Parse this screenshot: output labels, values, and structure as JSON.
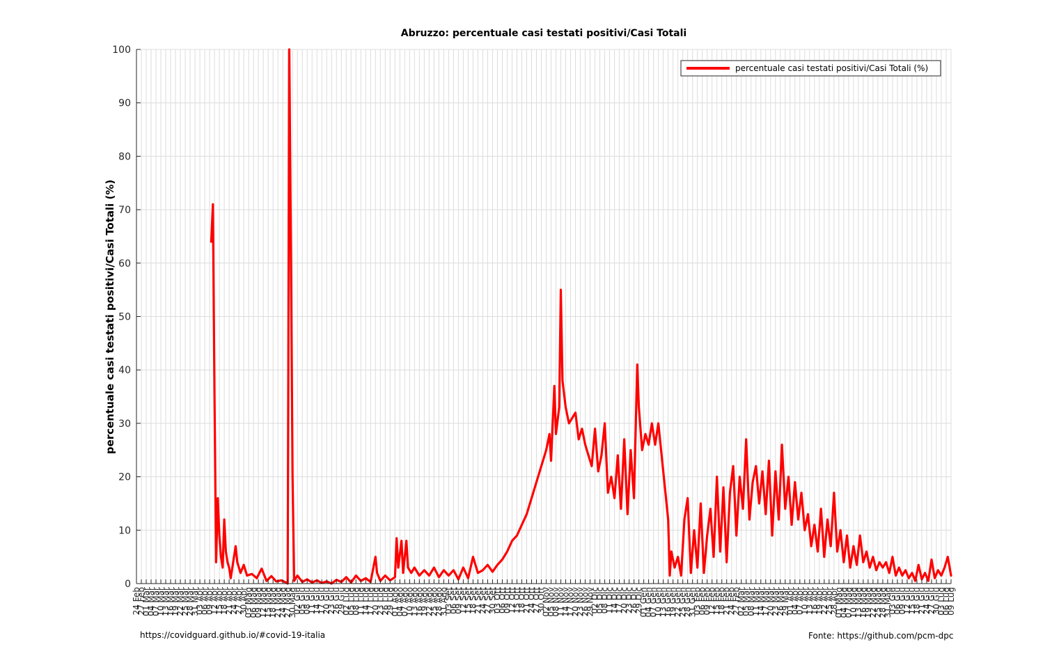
{
  "footer": {
    "left": "https://covidguard.github.io/#covid-19-italia",
    "right": "Fonte: https://github.com/pcm-dpc"
  },
  "colors": {
    "line": "#ff0000",
    "grid": "#dcdcdc",
    "axis": "#262626"
  },
  "chart_data": {
    "type": "line",
    "title": "Abruzzo: percentuale casi testati positivi/Casi Totali",
    "ylabel": "percentuale casi testati positivi/Casi Totali (%)",
    "xlabel": "",
    "ylim": [
      0,
      100
    ],
    "yticks": [
      0,
      10,
      20,
      30,
      40,
      50,
      60,
      70,
      80,
      90,
      100
    ],
    "grid": true,
    "legend_position": "top-right",
    "x_start": "2020-02-24",
    "x_end": "2021-07-09",
    "x_tick_interval_days": 3,
    "series": [
      {
        "name": "percentuale casi testati positivi/Casi Totali (%)",
        "color": "#ff0000",
        "points": [
          [
            "2020-02-24",
            null
          ],
          [
            "2020-04-09",
            null
          ],
          [
            "2020-04-10",
            64
          ],
          [
            "2020-04-11",
            71
          ],
          [
            "2020-04-12",
            35
          ],
          [
            "2020-04-13",
            4
          ],
          [
            "2020-04-14",
            16
          ],
          [
            "2020-04-15",
            9
          ],
          [
            "2020-04-16",
            5
          ],
          [
            "2020-04-17",
            3
          ],
          [
            "2020-04-18",
            12
          ],
          [
            "2020-04-19",
            6
          ],
          [
            "2020-04-20",
            4
          ],
          [
            "2020-04-21",
            3
          ],
          [
            "2020-04-22",
            1
          ],
          [
            "2020-04-24",
            5
          ],
          [
            "2020-04-25",
            7
          ],
          [
            "2020-04-26",
            4
          ],
          [
            "2020-04-28",
            2
          ],
          [
            "2020-04-30",
            3.5
          ],
          [
            "2020-05-02",
            1.5
          ],
          [
            "2020-05-05",
            1.8
          ],
          [
            "2020-05-08",
            1
          ],
          [
            "2020-05-11",
            2.8
          ],
          [
            "2020-05-14",
            0.5
          ],
          [
            "2020-05-17",
            1.4
          ],
          [
            "2020-05-20",
            0.4
          ],
          [
            "2020-05-23",
            0.6
          ],
          [
            "2020-05-26",
            0.2
          ],
          [
            "2020-05-27",
            0
          ],
          [
            "2020-05-28",
            100
          ],
          [
            "2020-05-29",
            62
          ],
          [
            "2020-05-30",
            20
          ],
          [
            "2020-05-31",
            0.5
          ],
          [
            "2020-06-02",
            1.5
          ],
          [
            "2020-06-05",
            0.3
          ],
          [
            "2020-06-08",
            0.8
          ],
          [
            "2020-06-11",
            0.2
          ],
          [
            "2020-06-14",
            0.6
          ],
          [
            "2020-06-17",
            0.1
          ],
          [
            "2020-06-20",
            0.4
          ],
          [
            "2020-06-23",
            0
          ],
          [
            "2020-06-26",
            0.7
          ],
          [
            "2020-06-29",
            0.3
          ],
          [
            "2020-07-02",
            1.2
          ],
          [
            "2020-07-05",
            0.2
          ],
          [
            "2020-07-08",
            1.5
          ],
          [
            "2020-07-11",
            0.5
          ],
          [
            "2020-07-14",
            1
          ],
          [
            "2020-07-17",
            0.3
          ],
          [
            "2020-07-20",
            5
          ],
          [
            "2020-07-21",
            2
          ],
          [
            "2020-07-23",
            0.5
          ],
          [
            "2020-07-26",
            1.5
          ],
          [
            "2020-07-29",
            0.6
          ],
          [
            "2020-08-01",
            1.2
          ],
          [
            "2020-08-02",
            8.5
          ],
          [
            "2020-08-03",
            3
          ],
          [
            "2020-08-05",
            8
          ],
          [
            "2020-08-06",
            2
          ],
          [
            "2020-08-08",
            8
          ],
          [
            "2020-08-09",
            3
          ],
          [
            "2020-08-11",
            2
          ],
          [
            "2020-08-13",
            3
          ],
          [
            "2020-08-16",
            1.5
          ],
          [
            "2020-08-19",
            2.5
          ],
          [
            "2020-08-22",
            1.5
          ],
          [
            "2020-08-25",
            3
          ],
          [
            "2020-08-28",
            1.2
          ],
          [
            "2020-08-31",
            2.5
          ],
          [
            "2020-09-03",
            1.5
          ],
          [
            "2020-09-06",
            2.5
          ],
          [
            "2020-09-09",
            0.8
          ],
          [
            "2020-09-12",
            3
          ],
          [
            "2020-09-15",
            1
          ],
          [
            "2020-09-18",
            5
          ],
          [
            "2020-09-21",
            2
          ],
          [
            "2020-09-24",
            2.5
          ],
          [
            "2020-09-27",
            3.5
          ],
          [
            "2020-09-30",
            2.2
          ],
          [
            "2020-10-03",
            3.5
          ],
          [
            "2020-10-06",
            4.5
          ],
          [
            "2020-10-09",
            6
          ],
          [
            "2020-10-12",
            8
          ],
          [
            "2020-10-15",
            9
          ],
          [
            "2020-10-18",
            11
          ],
          [
            "2020-10-21",
            13
          ],
          [
            "2020-10-24",
            16
          ],
          [
            "2020-10-27",
            19
          ],
          [
            "2020-10-30",
            22
          ],
          [
            "2020-11-02",
            25
          ],
          [
            "2020-11-04",
            28
          ],
          [
            "2020-11-05",
            23
          ],
          [
            "2020-11-07",
            37
          ],
          [
            "2020-11-08",
            28
          ],
          [
            "2020-11-10",
            33
          ],
          [
            "2020-11-11",
            55
          ],
          [
            "2020-11-12",
            38
          ],
          [
            "2020-11-14",
            33
          ],
          [
            "2020-11-16",
            30
          ],
          [
            "2020-11-18",
            31
          ],
          [
            "2020-11-20",
            32
          ],
          [
            "2020-11-22",
            27
          ],
          [
            "2020-11-24",
            29
          ],
          [
            "2020-11-26",
            26
          ],
          [
            "2020-11-28",
            24
          ],
          [
            "2020-11-30",
            22
          ],
          [
            "2020-12-02",
            29
          ],
          [
            "2020-12-04",
            21
          ],
          [
            "2020-12-06",
            24
          ],
          [
            "2020-12-08",
            30
          ],
          [
            "2020-12-10",
            17
          ],
          [
            "2020-12-12",
            20
          ],
          [
            "2020-12-14",
            16
          ],
          [
            "2020-12-16",
            24
          ],
          [
            "2020-12-18",
            14
          ],
          [
            "2020-12-20",
            27
          ],
          [
            "2020-12-22",
            13
          ],
          [
            "2020-12-24",
            25
          ],
          [
            "2020-12-26",
            16
          ],
          [
            "2020-12-28",
            41
          ],
          [
            "2020-12-29",
            33
          ],
          [
            "2020-12-31",
            25
          ],
          [
            "2021-01-02",
            28
          ],
          [
            "2021-01-04",
            26
          ],
          [
            "2021-01-06",
            30
          ],
          [
            "2021-01-08",
            26
          ],
          [
            "2021-01-10",
            30
          ],
          [
            "2021-01-12",
            24
          ],
          [
            "2021-01-14",
            18
          ],
          [
            "2021-01-16",
            12
          ],
          [
            "2021-01-17",
            1.5
          ],
          [
            "2021-01-18",
            6
          ],
          [
            "2021-01-20",
            3
          ],
          [
            "2021-01-22",
            5
          ],
          [
            "2021-01-24",
            1.5
          ],
          [
            "2021-01-26",
            12
          ],
          [
            "2021-01-28",
            16
          ],
          [
            "2021-01-30",
            2
          ],
          [
            "2021-02-01",
            10
          ],
          [
            "2021-02-03",
            3
          ],
          [
            "2021-02-05",
            15
          ],
          [
            "2021-02-07",
            2
          ],
          [
            "2021-02-09",
            9
          ],
          [
            "2021-02-11",
            14
          ],
          [
            "2021-02-13",
            5
          ],
          [
            "2021-02-15",
            20
          ],
          [
            "2021-02-17",
            6
          ],
          [
            "2021-02-19",
            18
          ],
          [
            "2021-02-21",
            4
          ],
          [
            "2021-02-23",
            17
          ],
          [
            "2021-02-25",
            22
          ],
          [
            "2021-02-27",
            9
          ],
          [
            "2021-03-01",
            20
          ],
          [
            "2021-03-03",
            14
          ],
          [
            "2021-03-05",
            27
          ],
          [
            "2021-03-07",
            12
          ],
          [
            "2021-03-09",
            19
          ],
          [
            "2021-03-11",
            22
          ],
          [
            "2021-03-13",
            15
          ],
          [
            "2021-03-15",
            21
          ],
          [
            "2021-03-17",
            13
          ],
          [
            "2021-03-19",
            23
          ],
          [
            "2021-03-21",
            9
          ],
          [
            "2021-03-23",
            21
          ],
          [
            "2021-03-25",
            12
          ],
          [
            "2021-03-27",
            26
          ],
          [
            "2021-03-29",
            14
          ],
          [
            "2021-03-31",
            20
          ],
          [
            "2021-04-02",
            11
          ],
          [
            "2021-04-04",
            19
          ],
          [
            "2021-04-06",
            12
          ],
          [
            "2021-04-08",
            17
          ],
          [
            "2021-04-10",
            10
          ],
          [
            "2021-04-12",
            13
          ],
          [
            "2021-04-14",
            7
          ],
          [
            "2021-04-16",
            11
          ],
          [
            "2021-04-18",
            6
          ],
          [
            "2021-04-20",
            14
          ],
          [
            "2021-04-22",
            5
          ],
          [
            "2021-04-24",
            12
          ],
          [
            "2021-04-26",
            7
          ],
          [
            "2021-04-28",
            17
          ],
          [
            "2021-04-30",
            6
          ],
          [
            "2021-05-02",
            10
          ],
          [
            "2021-05-04",
            4
          ],
          [
            "2021-05-06",
            9
          ],
          [
            "2021-05-08",
            3
          ],
          [
            "2021-05-10",
            7
          ],
          [
            "2021-05-12",
            3.5
          ],
          [
            "2021-05-14",
            9
          ],
          [
            "2021-05-16",
            4
          ],
          [
            "2021-05-18",
            6
          ],
          [
            "2021-05-20",
            3
          ],
          [
            "2021-05-22",
            5
          ],
          [
            "2021-05-24",
            2.5
          ],
          [
            "2021-05-26",
            4
          ],
          [
            "2021-05-28",
            3
          ],
          [
            "2021-05-30",
            4
          ],
          [
            "2021-06-01",
            2
          ],
          [
            "2021-06-03",
            5
          ],
          [
            "2021-06-05",
            1.5
          ],
          [
            "2021-06-07",
            3
          ],
          [
            "2021-06-09",
            1.5
          ],
          [
            "2021-06-11",
            2.5
          ],
          [
            "2021-06-13",
            1
          ],
          [
            "2021-06-15",
            2
          ],
          [
            "2021-06-17",
            0.5
          ],
          [
            "2021-06-19",
            3.5
          ],
          [
            "2021-06-21",
            0.8
          ],
          [
            "2021-06-23",
            2
          ],
          [
            "2021-06-25",
            0.5
          ],
          [
            "2021-06-27",
            4.5
          ],
          [
            "2021-06-29",
            1
          ],
          [
            "2021-07-01",
            2.5
          ],
          [
            "2021-07-03",
            1.5
          ],
          [
            "2021-07-05",
            3
          ],
          [
            "2021-07-07",
            5
          ],
          [
            "2021-07-09",
            1.5
          ]
        ]
      }
    ]
  }
}
